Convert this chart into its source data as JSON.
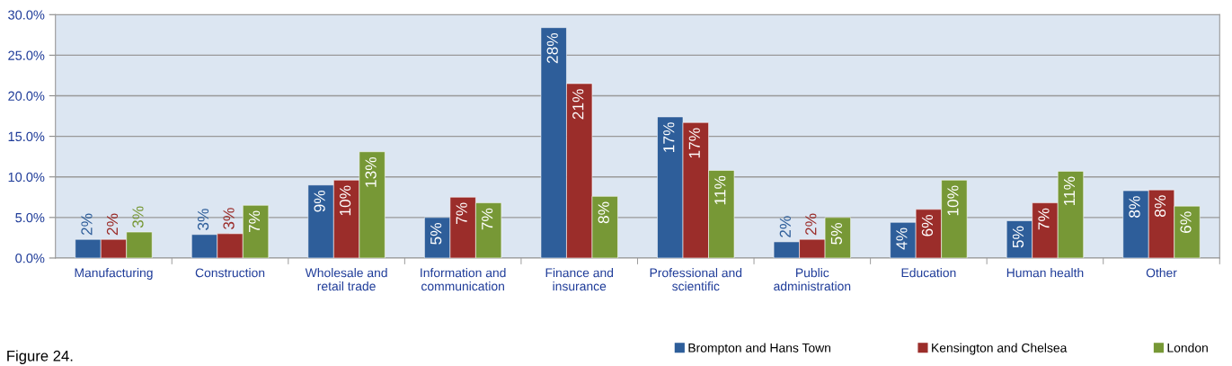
{
  "chart_data": {
    "type": "bar",
    "categories": [
      "Manufacturing",
      "Construction",
      "Wholesale and\nretail trade",
      "Information and\ncommunication",
      "Finance and\ninsurance",
      "Professional and\nscientific",
      "Public\nadministration",
      "Education",
      "Human health",
      "Other"
    ],
    "series": [
      {
        "name": "Brompton and Hans Town",
        "color": "#2e5e9a",
        "values": [
          2.3,
          2.9,
          9.0,
          5.0,
          28.4,
          17.4,
          2.0,
          4.4,
          4.6,
          8.3
        ],
        "value_labels": [
          "2%",
          "3%",
          "9%",
          "5%",
          "28%",
          "17%",
          "2%",
          "4%",
          "5%",
          "8%"
        ]
      },
      {
        "name": "Kensington and Chelsea",
        "color": "#9b2d2a",
        "values": [
          2.3,
          3.0,
          9.6,
          7.5,
          21.5,
          16.7,
          2.3,
          6.0,
          6.8,
          8.4
        ],
        "value_labels": [
          "2%",
          "3%",
          "10%",
          "7%",
          "21%",
          "17%",
          "2%",
          "6%",
          "7%",
          "8%"
        ]
      },
      {
        "name": "London",
        "color": "#779836",
        "values": [
          3.2,
          6.5,
          13.1,
          6.8,
          7.6,
          10.8,
          5.0,
          9.6,
          10.7,
          6.4
        ],
        "value_labels": [
          "3%",
          "7%",
          "13%",
          "7%",
          "8%",
          "11%",
          "5%",
          "10%",
          "11%",
          "6%"
        ]
      }
    ],
    "ylim": [
      0,
      30
    ],
    "yticks": [
      {
        "value": 0,
        "label": "0.0%"
      },
      {
        "value": 5,
        "label": "5.0%"
      },
      {
        "value": 10,
        "label": "10.0%"
      },
      {
        "value": 15,
        "label": "15.0%"
      },
      {
        "value": 20,
        "label": "20.0%"
      },
      {
        "value": 25,
        "label": "25.0%"
      },
      {
        "value": 30,
        "label": "30.0%"
      }
    ],
    "grid": "y",
    "legend": "bottom right",
    "annotations": [
      "Figure 24."
    ]
  }
}
